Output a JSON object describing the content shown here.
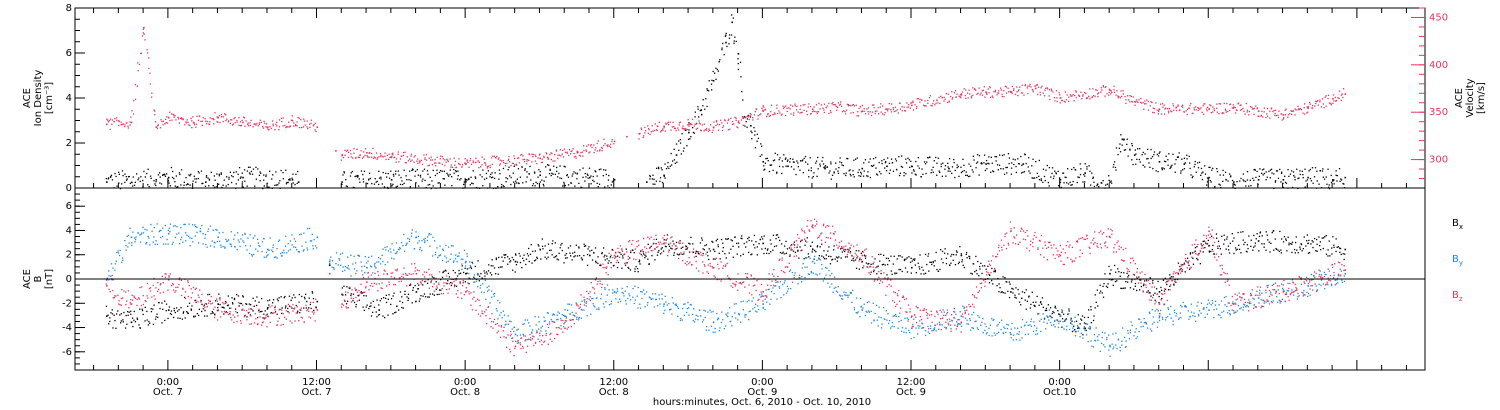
{
  "colors": {
    "black": "#000000",
    "pink": "#e8355f",
    "blue": "#1e88e5"
  },
  "chart_data": [
    {
      "type": "scatter",
      "panel": "top",
      "ylabel_lines": [
        "ACE",
        "Ion Density",
        "[cm⁻³]"
      ],
      "y_ticks": [
        0,
        2,
        4,
        6,
        8
      ],
      "ylim": [
        0,
        8
      ],
      "y2label_lines": [
        "ACE",
        "Velocity",
        "[km/s]"
      ],
      "y2_ticks": [
        300,
        350,
        400,
        450
      ],
      "y2lim": [
        270,
        460
      ],
      "series": [
        {
          "axis": "left",
          "color": "#000000",
          "points": [
            [
              -5,
              0.3
            ],
            [
              -1,
              0.4
            ],
            [
              0,
              0.5
            ],
            [
              3,
              0.3
            ],
            [
              6,
              0.5
            ],
            [
              10,
              0.4
            ],
            [
              10.5,
              0.3
            ],
            [
              14,
              0.3
            ],
            [
              18,
              0.4
            ],
            [
              24,
              0.4
            ],
            [
              30,
              0.6
            ],
            [
              34,
              0.5
            ],
            [
              36,
              0.4
            ],
            [
              38.6,
              0.3
            ],
            [
              40,
              0.6
            ],
            [
              41,
              1.5
            ],
            [
              42,
              2.5
            ],
            [
              43,
              3.5
            ],
            [
              44,
              4.8
            ],
            [
              45,
              6.5
            ],
            [
              45.5,
              7.4
            ],
            [
              46,
              6.0
            ],
            [
              46.5,
              3.2
            ],
            [
              47,
              2.8
            ],
            [
              48,
              1.2
            ],
            [
              50,
              1.0
            ],
            [
              53,
              0.9
            ],
            [
              56,
              0.9
            ],
            [
              58,
              1.0
            ],
            [
              60,
              1.0
            ],
            [
              63,
              0.9
            ],
            [
              66,
              1.1
            ],
            [
              69,
              1.1
            ],
            [
              72,
              0.4
            ],
            [
              74,
              0.7
            ],
            [
              75,
              0.2
            ],
            [
              76,
              0.3
            ],
            [
              77,
              2.2
            ],
            [
              78,
              1.5
            ],
            [
              80,
              1.2
            ],
            [
              82,
              1.1
            ],
            [
              84,
              0.5
            ],
            [
              86,
              0.3
            ],
            [
              88,
              0.4
            ],
            [
              90,
              0.4
            ],
            [
              92,
              0.5
            ],
            [
              94,
              0.4
            ],
            [
              95,
              0.5
            ]
          ]
        },
        {
          "axis": "right",
          "color": "#e8355f",
          "points": [
            [
              -5,
              338
            ],
            [
              -3,
              340
            ],
            [
              -2,
              440
            ],
            [
              -1,
              335
            ],
            [
              0,
              345
            ],
            [
              2,
              340
            ],
            [
              4,
              345
            ],
            [
              6,
              340
            ],
            [
              8,
              335
            ],
            [
              10,
              342
            ],
            [
              12,
              335
            ],
            [
              13.5,
              310
            ],
            [
              14,
              305
            ],
            [
              16,
              308
            ],
            [
              18,
              304
            ],
            [
              24,
              296
            ],
            [
              30,
              302
            ],
            [
              33,
              308
            ],
            [
              36,
              320
            ],
            [
              37,
              325
            ],
            [
              38,
              328
            ],
            [
              40,
              336
            ],
            [
              42,
              338
            ],
            [
              44,
              335
            ],
            [
              46,
              340
            ],
            [
              48,
              352
            ],
            [
              52,
              354
            ],
            [
              54,
              356
            ],
            [
              56,
              352
            ],
            [
              58,
              354
            ],
            [
              60,
              358
            ],
            [
              64,
              370
            ],
            [
              66,
              372
            ],
            [
              68,
              372
            ],
            [
              70,
              376
            ],
            [
              72,
              366
            ],
            [
              76,
              374
            ],
            [
              78,
              362
            ],
            [
              80,
              354
            ],
            [
              84,
              354
            ],
            [
              86,
              356
            ],
            [
              88,
              352
            ],
            [
              90,
              348
            ],
            [
              92,
              355
            ],
            [
              94,
              365
            ],
            [
              95,
              370
            ]
          ]
        }
      ]
    },
    {
      "type": "scatter",
      "panel": "bottom",
      "ylabel_lines": [
        "ACE",
        "B",
        "[nT]"
      ],
      "y_ticks": [
        -6,
        -4,
        -2,
        0,
        2,
        4,
        6
      ],
      "ylim": [
        -7.5,
        7.5
      ],
      "legend": [
        "Bx",
        "By",
        "Bz"
      ],
      "series": [
        {
          "name": "Bx",
          "color": "#000000",
          "points": [
            [
              -5,
              -3.0
            ],
            [
              -3,
              -3.5
            ],
            [
              0,
              -2.5
            ],
            [
              4,
              -2.0
            ],
            [
              8,
              -2.3
            ],
            [
              12,
              -1.8
            ],
            [
              13,
              1.2
            ],
            [
              14,
              -1.2
            ],
            [
              17,
              -2.5
            ],
            [
              20,
              -1.0
            ],
            [
              24,
              0.5
            ],
            [
              28,
              1.5
            ],
            [
              30,
              2.5
            ],
            [
              34,
              2.0
            ],
            [
              38,
              1.5
            ],
            [
              40,
              3.0
            ],
            [
              44,
              2.5
            ],
            [
              48,
              3.0
            ],
            [
              52,
              2.5
            ],
            [
              56,
              1.5
            ],
            [
              60,
              1.0
            ],
            [
              64,
              2.0
            ],
            [
              68,
              -1.0
            ],
            [
              72,
              -3.0
            ],
            [
              74,
              -4.0
            ],
            [
              76,
              0.5
            ],
            [
              80,
              -1.0
            ],
            [
              84,
              2.8
            ],
            [
              88,
              3.2
            ],
            [
              92,
              3.0
            ],
            [
              95,
              2.5
            ]
          ]
        },
        {
          "name": "By",
          "color": "#1e88e5",
          "points": [
            [
              -5,
              0.0
            ],
            [
              -3,
              3.5
            ],
            [
              0,
              3.8
            ],
            [
              4,
              3.5
            ],
            [
              8,
              2.5
            ],
            [
              12,
              3.5
            ],
            [
              13,
              1.5
            ],
            [
              16,
              1.0
            ],
            [
              20,
              3.5
            ],
            [
              24,
              1.5
            ],
            [
              28,
              -4.5
            ],
            [
              32,
              -3.0
            ],
            [
              36,
              -1.0
            ],
            [
              40,
              -2.0
            ],
            [
              44,
              -3.5
            ],
            [
              48,
              -2.0
            ],
            [
              52,
              1.5
            ],
            [
              56,
              -2.5
            ],
            [
              60,
              -4.0
            ],
            [
              64,
              -3.0
            ],
            [
              68,
              -4.5
            ],
            [
              72,
              -3.0
            ],
            [
              76,
              -5.5
            ],
            [
              80,
              -3.0
            ],
            [
              84,
              -2.5
            ],
            [
              88,
              -1.5
            ],
            [
              92,
              -0.5
            ],
            [
              95,
              0.5
            ]
          ]
        },
        {
          "name": "Bz",
          "color": "#e8355f",
          "points": [
            [
              -5,
              -0.5
            ],
            [
              -3,
              -2.0
            ],
            [
              0,
              0.0
            ],
            [
              4,
              -2.5
            ],
            [
              8,
              -3.0
            ],
            [
              12,
              -2.5
            ],
            [
              13,
              0.5
            ],
            [
              14,
              -2.0
            ],
            [
              16,
              -0.2
            ],
            [
              20,
              0.5
            ],
            [
              24,
              -1.0
            ],
            [
              28,
              -5.5
            ],
            [
              32,
              -4.0
            ],
            [
              36,
              2.0
            ],
            [
              40,
              3.0
            ],
            [
              44,
              1.0
            ],
            [
              48,
              -1.0
            ],
            [
              52,
              4.5
            ],
            [
              56,
              2.0
            ],
            [
              60,
              -3.0
            ],
            [
              64,
              -3.5
            ],
            [
              68,
              4.0
            ],
            [
              72,
              2.0
            ],
            [
              76,
              3.5
            ],
            [
              80,
              -2.0
            ],
            [
              84,
              4.0
            ],
            [
              86,
              -2.0
            ],
            [
              90,
              -1.0
            ],
            [
              95,
              0.8
            ]
          ]
        }
      ]
    }
  ],
  "x_axis": {
    "range_hours": [
      -7.5,
      101.5
    ],
    "ticks": [
      {
        "h": 0,
        "time": "0:00",
        "date": "Oct. 7"
      },
      {
        "h": 12,
        "time": "12:00",
        "date": "Oct. 7"
      },
      {
        "h": 24,
        "time": "0:00",
        "date": "Oct. 8"
      },
      {
        "h": 36,
        "time": "12:00",
        "date": "Oct. 8"
      },
      {
        "h": 48,
        "time": "0:00",
        "date": "Oct. 9"
      },
      {
        "h": 60,
        "time": "12:00",
        "date": "Oct. 9"
      },
      {
        "h": 72,
        "time": "0:00",
        "date": "Oct.10"
      }
    ],
    "label": "hours:minutes, Oct.  6, 2010 - Oct. 10, 2010"
  }
}
